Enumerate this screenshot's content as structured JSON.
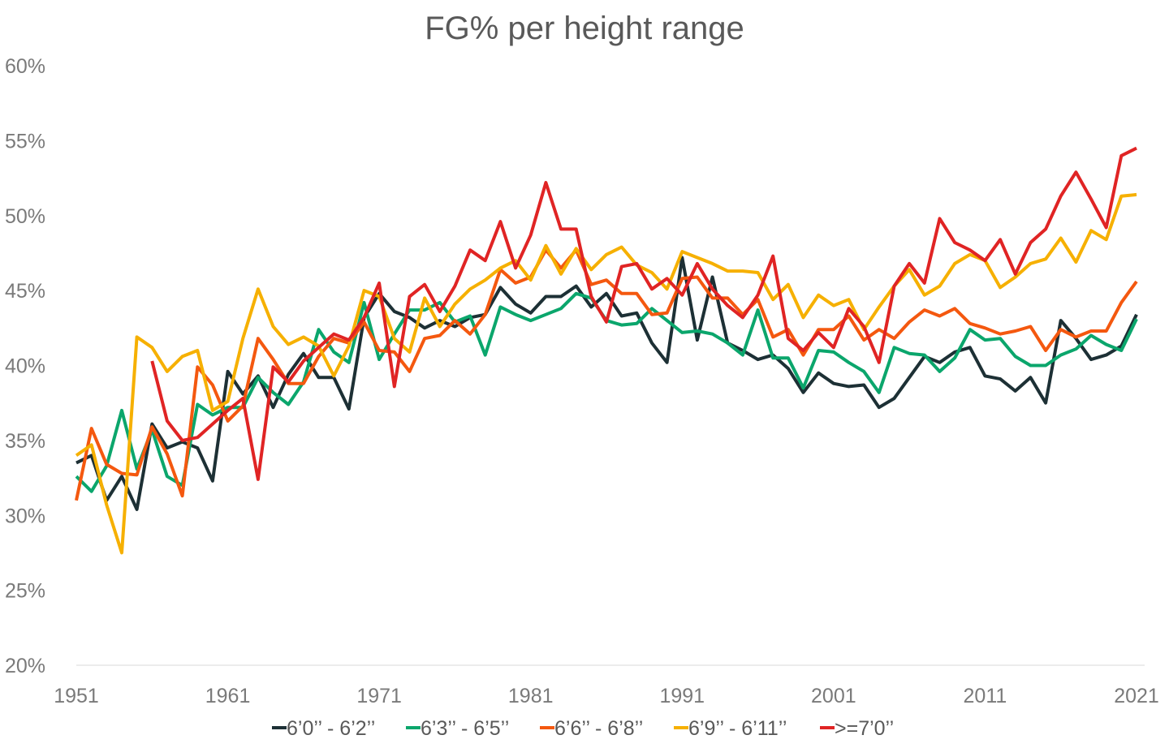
{
  "chart_data": {
    "type": "line",
    "title": "FG% per height range",
    "xlabel": "",
    "ylabel": "",
    "x_start": 1951,
    "x_end": 2021,
    "xticks": [
      "1951",
      "1961",
      "1971",
      "1981",
      "1991",
      "2001",
      "2011",
      "2021"
    ],
    "yticks": [
      "20%",
      "25%",
      "30%",
      "35%",
      "40%",
      "45%",
      "50%",
      "55%",
      "60%"
    ],
    "ylim": [
      20,
      60
    ],
    "grid": "baseline only",
    "legend_position": "bottom",
    "series": [
      {
        "name": "6’0’’ - 6’2’’",
        "color": "#1d3035",
        "values": [
          33.5,
          34.0,
          31.0,
          32.6,
          30.4,
          36.1,
          34.5,
          34.9,
          34.5,
          32.3,
          39.6,
          38.1,
          39.3,
          37.2,
          39.4,
          40.8,
          39.2,
          39.2,
          37.1,
          43.2,
          44.8,
          43.6,
          43.2,
          42.5,
          43.0,
          42.6,
          43.2,
          43.4,
          45.2,
          44.1,
          43.5,
          44.6,
          44.6,
          45.3,
          43.9,
          44.8,
          43.3,
          43.5,
          41.5,
          40.2,
          47.2,
          41.7,
          45.9,
          41.5,
          41.0,
          40.4,
          40.7,
          39.8,
          38.2,
          39.5,
          38.8,
          38.6,
          38.7,
          37.2,
          37.8,
          39.2,
          40.6,
          40.2,
          40.9,
          41.2,
          39.3,
          39.1,
          38.3,
          39.2,
          37.5,
          43.0,
          41.8,
          40.4,
          40.7,
          41.3,
          43.4
        ]
      },
      {
        "name": "6’3’’ - 6’5’’",
        "color": "#0ba66c",
        "values": [
          32.6,
          31.6,
          33.3,
          37.0,
          33.1,
          35.7,
          32.6,
          32.0,
          37.4,
          36.7,
          37.2,
          37.2,
          39.2,
          38.2,
          37.4,
          38.9,
          42.4,
          40.9,
          40.2,
          44.2,
          40.4,
          42.1,
          43.7,
          43.7,
          44.2,
          42.9,
          43.3,
          40.7,
          43.9,
          43.4,
          43.0,
          43.4,
          43.8,
          44.8,
          44.5,
          43.0,
          42.7,
          42.8,
          43.8,
          43.0,
          42.2,
          42.3,
          42.1,
          41.5,
          40.7,
          43.7,
          40.5,
          40.5,
          38.5,
          41.0,
          40.9,
          40.2,
          39.6,
          38.2,
          41.2,
          40.8,
          40.7,
          39.6,
          40.5,
          42.4,
          41.7,
          41.8,
          40.6,
          40.0,
          40.0,
          40.7,
          41.1,
          42.0,
          41.4,
          41.0,
          43.1
        ]
      },
      {
        "name": "6’6’’ - 6’8’’",
        "color": "#f4580f",
        "values": [
          31.0,
          35.8,
          33.4,
          32.8,
          32.7,
          35.9,
          34.1,
          31.3,
          39.9,
          38.7,
          36.3,
          37.3,
          41.8,
          40.4,
          38.8,
          38.8,
          40.6,
          41.8,
          41.5,
          42.9,
          41.0,
          40.9,
          39.6,
          41.8,
          42.0,
          43.0,
          42.1,
          43.4,
          46.4,
          45.5,
          45.9,
          47.7,
          46.5,
          47.7,
          45.4,
          45.7,
          44.8,
          44.8,
          43.4,
          43.5,
          45.8,
          45.9,
          44.5,
          44.5,
          43.4,
          44.4,
          41.9,
          42.4,
          40.7,
          42.4,
          42.4,
          43.3,
          41.7,
          42.4,
          41.8,
          42.9,
          43.7,
          43.3,
          43.8,
          42.8,
          42.5,
          42.1,
          42.3,
          42.6,
          41.0,
          42.4,
          41.9,
          42.3,
          42.3,
          44.2,
          45.6
        ]
      },
      {
        "name": "6’9’’ - 6’11’’",
        "color": "#f6b000",
        "values": [
          34.0,
          34.7,
          30.7,
          27.5,
          41.9,
          41.2,
          39.6,
          40.6,
          41.0,
          37.0,
          37.6,
          41.8,
          45.1,
          42.6,
          41.4,
          41.9,
          41.3,
          39.3,
          41.3,
          45.0,
          44.6,
          41.8,
          40.9,
          44.5,
          42.6,
          44.1,
          45.1,
          45.7,
          46.5,
          47.0,
          45.7,
          48.0,
          46.1,
          47.8,
          46.4,
          47.4,
          47.9,
          46.7,
          46.2,
          45.1,
          47.6,
          47.2,
          46.8,
          46.3,
          46.3,
          46.2,
          44.4,
          45.4,
          43.2,
          44.7,
          44.0,
          44.4,
          42.4,
          43.9,
          45.3,
          46.4,
          44.7,
          45.3,
          46.8,
          47.4,
          47.0,
          45.2,
          45.9,
          46.8,
          47.1,
          48.5,
          46.9,
          49.0,
          48.4,
          51.3,
          51.4
        ]
      },
      {
        "name": ">=7’0’’",
        "color": "#e02424",
        "values": [
          null,
          null,
          null,
          null,
          null,
          40.3,
          36.3,
          35.0,
          35.2,
          36.1,
          37.0,
          37.8,
          32.4,
          39.9,
          38.9,
          40.3,
          41.2,
          42.1,
          41.7,
          43.2,
          45.5,
          38.6,
          44.6,
          45.4,
          43.6,
          45.3,
          47.7,
          47.0,
          49.6,
          46.5,
          48.7,
          52.2,
          49.1,
          49.1,
          44.6,
          42.9,
          46.6,
          46.8,
          45.1,
          45.8,
          44.7,
          46.8,
          45.1,
          44.0,
          43.2,
          44.7,
          47.3,
          41.8,
          41.0,
          42.2,
          41.2,
          43.8,
          42.6,
          40.2,
          45.3,
          46.8,
          45.5,
          49.8,
          48.2,
          47.7,
          47.0,
          48.4,
          46.1,
          48.2,
          49.1,
          51.3,
          52.9,
          51.1,
          49.2,
          54.0,
          54.5
        ]
      }
    ]
  }
}
